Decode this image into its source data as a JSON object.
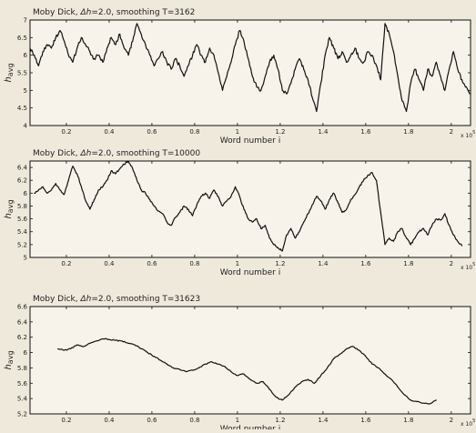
{
  "chart_data": [
    {
      "type": "line",
      "title_prefix": "Moby Dick, ",
      "title_math": "Δh",
      "title_rest": "=2.0, smoothing T=3162",
      "xlabel": "Word number i",
      "ylabel_main": "h",
      "ylabel_sub": "avg",
      "x_multiplier": "x 10",
      "x_exp": "5",
      "xlim": [
        0.03,
        2.09
      ],
      "ylim": [
        4,
        7
      ],
      "xticks": [
        "0.2",
        "0.4",
        "0.6",
        "0.8",
        "1",
        "1.2",
        "1.4",
        "1.6",
        "1.8",
        "2"
      ],
      "yticks": [
        "4",
        "4.5",
        "5",
        "5.5",
        "6",
        "6.5",
        "7"
      ],
      "series": [
        {
          "x": [
            0.03,
            0.05,
            0.07,
            0.09,
            0.11,
            0.13,
            0.15,
            0.17,
            0.19,
            0.21,
            0.23,
            0.25,
            0.27,
            0.29,
            0.31,
            0.33,
            0.35,
            0.37,
            0.39,
            0.41,
            0.43,
            0.45,
            0.47,
            0.49,
            0.51,
            0.53,
            0.55,
            0.57,
            0.59,
            0.61,
            0.63,
            0.65,
            0.67,
            0.69,
            0.71,
            0.73,
            0.75,
            0.77,
            0.79,
            0.81,
            0.83,
            0.85,
            0.87,
            0.89,
            0.91,
            0.93,
            0.95,
            0.97,
            0.99,
            1.01,
            1.03,
            1.05,
            1.07,
            1.09,
            1.11,
            1.13,
            1.15,
            1.17,
            1.19,
            1.21,
            1.23,
            1.25,
            1.27,
            1.29,
            1.31,
            1.33,
            1.35,
            1.37,
            1.39,
            1.41,
            1.43,
            1.45,
            1.47,
            1.49,
            1.51,
            1.53,
            1.55,
            1.57,
            1.59,
            1.61,
            1.63,
            1.65,
            1.67,
            1.69,
            1.71,
            1.73,
            1.75,
            1.77,
            1.79,
            1.81,
            1.83,
            1.85,
            1.87,
            1.89,
            1.91,
            1.93,
            1.95,
            1.97,
            1.99,
            2.01,
            2.03,
            2.05,
            2.07,
            2.09
          ],
          "y": [
            6.2,
            6.0,
            5.7,
            6.1,
            6.3,
            6.2,
            6.5,
            6.7,
            6.4,
            6.0,
            5.8,
            6.2,
            6.5,
            6.3,
            6.1,
            5.9,
            6.0,
            5.8,
            6.2,
            6.5,
            6.3,
            6.6,
            6.2,
            6.0,
            6.4,
            6.9,
            6.6,
            6.3,
            6.0,
            5.7,
            5.9,
            6.1,
            5.8,
            5.6,
            5.9,
            5.7,
            5.4,
            5.7,
            6.0,
            6.3,
            6.0,
            5.8,
            6.2,
            6.0,
            5.5,
            5.0,
            5.4,
            5.8,
            6.3,
            6.7,
            6.4,
            5.9,
            5.4,
            5.1,
            5.0,
            5.4,
            5.8,
            6.0,
            5.6,
            5.0,
            4.9,
            5.2,
            5.6,
            5.9,
            5.6,
            5.3,
            4.8,
            4.4,
            5.2,
            6.0,
            6.5,
            6.2,
            5.9,
            6.1,
            5.8,
            6.0,
            6.2,
            5.9,
            5.8,
            6.1,
            6.0,
            5.7,
            5.3,
            6.9,
            6.6,
            6.1,
            5.4,
            4.7,
            4.4,
            5.2,
            5.6,
            5.3,
            5.0,
            5.6,
            5.4,
            5.8,
            5.4,
            5.0,
            5.6,
            6.1,
            5.6,
            5.3,
            5.1,
            4.9
          ]
        }
      ]
    },
    {
      "type": "line",
      "title_prefix": "Moby Dick, ",
      "title_math": "Δh",
      "title_rest": "=2.0, smoothing T=10000",
      "xlabel": "Word number i",
      "ylabel_main": "h",
      "ylabel_sub": "avg",
      "x_multiplier": "x 10",
      "x_exp": "5",
      "xlim": [
        0.03,
        2.09
      ],
      "ylim": [
        5.0,
        6.5
      ],
      "xticks": [
        "0.2",
        "0.4",
        "0.6",
        "0.8",
        "1",
        "1.2",
        "1.4",
        "1.6",
        "1.8",
        "2"
      ],
      "yticks": [
        "5",
        "5.2",
        "5.4",
        "5.6",
        "5.8",
        "6",
        "6.2",
        "6.4"
      ],
      "series": [
        {
          "x": [
            0.05,
            0.07,
            0.09,
            0.11,
            0.13,
            0.15,
            0.17,
            0.19,
            0.21,
            0.23,
            0.25,
            0.27,
            0.29,
            0.31,
            0.33,
            0.35,
            0.37,
            0.39,
            0.41,
            0.43,
            0.45,
            0.47,
            0.49,
            0.51,
            0.53,
            0.55,
            0.57,
            0.59,
            0.61,
            0.63,
            0.65,
            0.67,
            0.69,
            0.71,
            0.73,
            0.75,
            0.77,
            0.79,
            0.81,
            0.83,
            0.85,
            0.87,
            0.89,
            0.91,
            0.93,
            0.95,
            0.97,
            0.99,
            1.01,
            1.03,
            1.05,
            1.07,
            1.09,
            1.11,
            1.13,
            1.15,
            1.17,
            1.19,
            1.21,
            1.23,
            1.25,
            1.27,
            1.29,
            1.31,
            1.33,
            1.35,
            1.37,
            1.39,
            1.41,
            1.43,
            1.45,
            1.47,
            1.49,
            1.51,
            1.53,
            1.55,
            1.57,
            1.59,
            1.61,
            1.63,
            1.65,
            1.67,
            1.69,
            1.71,
            1.73,
            1.75,
            1.77,
            1.79,
            1.81,
            1.83,
            1.85,
            1.87,
            1.89,
            1.91,
            1.93,
            1.95,
            1.97,
            1.99,
            2.01,
            2.03,
            2.05
          ],
          "y": [
            6.0,
            6.05,
            6.1,
            6.0,
            6.05,
            6.15,
            6.05,
            5.98,
            6.2,
            6.42,
            6.3,
            6.1,
            5.88,
            5.75,
            5.9,
            6.05,
            6.1,
            6.2,
            6.35,
            6.3,
            6.38,
            6.45,
            6.5,
            6.38,
            6.2,
            6.05,
            6.0,
            5.9,
            5.8,
            5.72,
            5.68,
            5.55,
            5.5,
            5.62,
            5.7,
            5.8,
            5.75,
            5.65,
            5.82,
            5.95,
            6.0,
            5.92,
            6.05,
            5.95,
            5.8,
            5.88,
            5.95,
            6.1,
            5.95,
            5.75,
            5.6,
            5.55,
            5.6,
            5.45,
            5.5,
            5.3,
            5.2,
            5.15,
            5.1,
            5.35,
            5.45,
            5.3,
            5.4,
            5.55,
            5.68,
            5.82,
            5.95,
            5.88,
            5.75,
            5.9,
            6.0,
            5.85,
            5.7,
            5.75,
            5.9,
            5.98,
            6.1,
            6.2,
            6.28,
            6.32,
            6.2,
            5.7,
            5.2,
            5.3,
            5.25,
            5.4,
            5.45,
            5.3,
            5.2,
            5.3,
            5.4,
            5.45,
            5.35,
            5.5,
            5.6,
            5.58,
            5.68,
            5.5,
            5.35,
            5.25,
            5.18
          ]
        }
      ]
    },
    {
      "type": "line",
      "title_prefix": "Moby Dick, ",
      "title_math": "Δh",
      "title_rest": "=2.0, smoothing T=31623",
      "xlabel": "Word number i",
      "ylabel_main": "h",
      "ylabel_sub": "avg",
      "x_multiplier": "x 10",
      "x_exp": "5",
      "xlim": [
        0.03,
        2.09
      ],
      "ylim": [
        5.2,
        6.6
      ],
      "xticks": [
        "0.2",
        "0.4",
        "0.6",
        "0.8",
        "1",
        "1.2",
        "1.4",
        "1.6",
        "1.8",
        "2"
      ],
      "yticks": [
        "5.2",
        "5.4",
        "5.6",
        "5.8",
        "6",
        "6.2",
        "6.4",
        "6.6"
      ],
      "series": [
        {
          "x": [
            0.16,
            0.19,
            0.22,
            0.25,
            0.28,
            0.31,
            0.34,
            0.37,
            0.4,
            0.43,
            0.46,
            0.49,
            0.52,
            0.55,
            0.58,
            0.61,
            0.64,
            0.67,
            0.7,
            0.73,
            0.76,
            0.79,
            0.82,
            0.85,
            0.88,
            0.91,
            0.94,
            0.97,
            1.0,
            1.03,
            1.06,
            1.09,
            1.12,
            1.15,
            1.18,
            1.21,
            1.24,
            1.27,
            1.3,
            1.33,
            1.36,
            1.39,
            1.42,
            1.45,
            1.48,
            1.51,
            1.54,
            1.57,
            1.6,
            1.63,
            1.66,
            1.69,
            1.72,
            1.75,
            1.78,
            1.81,
            1.84,
            1.87,
            1.9,
            1.93
          ],
          "y": [
            6.05,
            6.03,
            6.05,
            6.1,
            6.08,
            6.12,
            6.15,
            6.18,
            6.17,
            6.16,
            6.15,
            6.12,
            6.1,
            6.05,
            6.0,
            5.95,
            5.9,
            5.85,
            5.8,
            5.78,
            5.75,
            5.77,
            5.8,
            5.85,
            5.88,
            5.85,
            5.82,
            5.75,
            5.7,
            5.72,
            5.65,
            5.6,
            5.62,
            5.52,
            5.42,
            5.38,
            5.45,
            5.55,
            5.62,
            5.65,
            5.6,
            5.7,
            5.8,
            5.92,
            5.98,
            6.05,
            6.08,
            6.03,
            5.95,
            5.85,
            5.8,
            5.72,
            5.65,
            5.55,
            5.45,
            5.38,
            5.36,
            5.34,
            5.33,
            5.38
          ]
        }
      ]
    }
  ]
}
